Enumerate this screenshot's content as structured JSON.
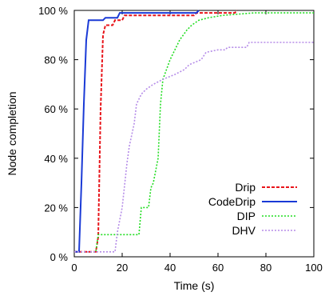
{
  "chart_data": {
    "type": "line",
    "xlabel": "Time (s)",
    "ylabel": "Node completion",
    "xlim": [
      0,
      100
    ],
    "ylim": [
      0,
      100
    ],
    "xticks": [
      0,
      20,
      40,
      60,
      80,
      100
    ],
    "xtick_labels": [
      "0",
      "20",
      "40",
      "60",
      "80",
      "100"
    ],
    "yticks": [
      0,
      20,
      40,
      60,
      80,
      100
    ],
    "ytick_labels": [
      "0 %",
      "20 %",
      "40 %",
      "60 %",
      "80 %",
      "100 %"
    ],
    "grid": false,
    "legend_position": "bottom-right",
    "series": [
      {
        "name": "Drip",
        "color": "#e8141a",
        "dash": "dashed",
        "points": [
          [
            0,
            2
          ],
          [
            9,
            2
          ],
          [
            10,
            8
          ],
          [
            11,
            60
          ],
          [
            12,
            90
          ],
          [
            13,
            94
          ],
          [
            16,
            94
          ],
          [
            17,
            96
          ],
          [
            20,
            96
          ],
          [
            21,
            98
          ],
          [
            50,
            98
          ],
          [
            51,
            99
          ],
          [
            67,
            99
          ],
          [
            68,
            100
          ]
        ]
      },
      {
        "name": "CodeDrip",
        "color": "#1a3ad6",
        "dash": "solid",
        "points": [
          [
            0,
            2
          ],
          [
            2,
            2
          ],
          [
            3,
            30
          ],
          [
            4,
            62
          ],
          [
            5,
            88
          ],
          [
            6,
            96
          ],
          [
            12,
            96
          ],
          [
            13,
            97
          ],
          [
            18,
            97
          ],
          [
            19,
            99
          ],
          [
            51,
            99
          ],
          [
            52,
            100
          ]
        ]
      },
      {
        "name": "DIP",
        "color": "#22dd22",
        "dash": "dotted",
        "points": [
          [
            0,
            2
          ],
          [
            9,
            2
          ],
          [
            10,
            9
          ],
          [
            27,
            9
          ],
          [
            28,
            20
          ],
          [
            31,
            20
          ],
          [
            32,
            28
          ],
          [
            33,
            30
          ],
          [
            35,
            40
          ],
          [
            36,
            62
          ],
          [
            37,
            72
          ],
          [
            40,
            80
          ],
          [
            44,
            88
          ],
          [
            47,
            92
          ],
          [
            49,
            94
          ],
          [
            52,
            96
          ],
          [
            56,
            97
          ],
          [
            62,
            98
          ],
          [
            75,
            99
          ],
          [
            100,
            99
          ]
        ]
      },
      {
        "name": "DHV",
        "color": "#b58ce8",
        "dash": "dotted",
        "points": [
          [
            0,
            2
          ],
          [
            17,
            2
          ],
          [
            18,
            10
          ],
          [
            20,
            20
          ],
          [
            22,
            38
          ],
          [
            23,
            45
          ],
          [
            25,
            54
          ],
          [
            26,
            62
          ],
          [
            28,
            66
          ],
          [
            30,
            68
          ],
          [
            33,
            70
          ],
          [
            37,
            72
          ],
          [
            42,
            74
          ],
          [
            46,
            76
          ],
          [
            48,
            78
          ],
          [
            53,
            80
          ],
          [
            55,
            83
          ],
          [
            60,
            84
          ],
          [
            63,
            84
          ],
          [
            64,
            85
          ],
          [
            72,
            85
          ],
          [
            73,
            87
          ],
          [
            100,
            87
          ]
        ]
      }
    ]
  }
}
